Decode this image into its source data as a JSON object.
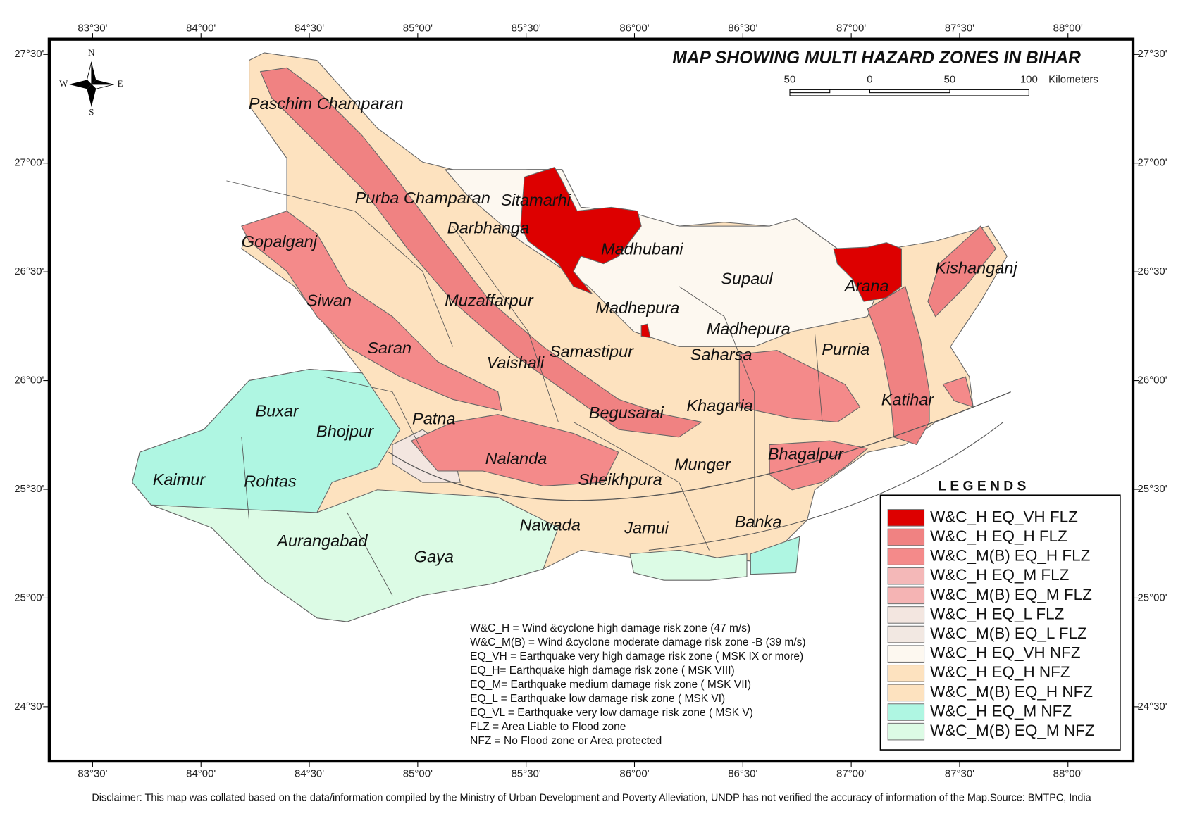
{
  "map": {
    "title": "MAP SHOWING MULTI HAZARD ZONES IN  BIHAR",
    "compass": {
      "n": "N",
      "s": "S",
      "e": "E",
      "w": "W"
    },
    "scale_bar": {
      "labels": [
        "50",
        "0",
        "50",
        "100"
      ],
      "unit": "Kilometers"
    },
    "xlim": [
      83.3,
      88.3
    ],
    "ylim": [
      24.25,
      27.57
    ],
    "xticks": [
      {
        "value": 83.5,
        "label": "83°30'"
      },
      {
        "value": 84,
        "label": "84°00'"
      },
      {
        "value": 84.5,
        "label": "84°30'"
      },
      {
        "value": 85,
        "label": "85°00'"
      },
      {
        "value": 85.5,
        "label": "85°30'"
      },
      {
        "value": 86,
        "label": "86°00'"
      },
      {
        "value": 86.5,
        "label": "86°30'"
      },
      {
        "value": 87,
        "label": "87°00'"
      },
      {
        "value": 87.5,
        "label": "87°30'"
      },
      {
        "value": 88,
        "label": "88°00'"
      }
    ],
    "yticks": [
      {
        "value": 27.5,
        "label": "27°30'"
      },
      {
        "value": 27,
        "label": "27°00'"
      },
      {
        "value": 26.5,
        "label": "26°30'"
      },
      {
        "value": 26,
        "label": "26°00'"
      },
      {
        "value": 25.5,
        "label": "25°30'"
      },
      {
        "value": 25,
        "label": "25°00'"
      },
      {
        "value": 24.5,
        "label": "24°30'"
      }
    ],
    "districts": [
      "Paschim Champaran",
      "Purba Champaran",
      "Sitamarhi",
      "Darbhanga",
      "Gopalganj",
      "Madhubani",
      "Supaul",
      "Arana",
      "Kishanganj",
      "Siwan",
      "Muzaffarpur",
      "Madhepura",
      "Madhepura",
      "Saran",
      "Vaishali",
      "Samastipur",
      "Saharsa",
      "Purnia",
      "Khagaria",
      "Katihar",
      "Begusarai",
      "Buxar",
      "Bhojpur",
      "Patna",
      "Bhagalpur",
      "Kaimur",
      "Rohtas",
      "Nalanda",
      "Sheikhpura",
      "Munger",
      "Nawada",
      "Jamui",
      "Banka",
      "Aurangabad",
      "Gaya"
    ],
    "legend": {
      "title": "L E G E N D S",
      "entries": [
        {
          "name": "W&C_H EQ_VH FLZ",
          "color": "#dd0000"
        },
        {
          "name": "W&C_H EQ_H FLZ",
          "color": "#f08282"
        },
        {
          "name": "W&C_M(B) EQ_H FLZ",
          "color": "#f48a8a"
        },
        {
          "name": "W&C_H EQ_M FLZ",
          "color": "#f4b8b8"
        },
        {
          "name": "W&C_M(B) EQ_M FLZ",
          "color": "#f5b4b4"
        },
        {
          "name": "W&C_H EQ_L FLZ",
          "color": "#f3e6e0"
        },
        {
          "name": "W&C_M(B) EQ_L FLZ",
          "color": "#f2e8e2"
        },
        {
          "name": "W&C_H EQ_VH NFZ",
          "color": "#fdf8f0"
        },
        {
          "name": "W&C_H EQ_H NFZ",
          "color": "#fde2bf"
        },
        {
          "name": "W&C_M(B) EQ_H NFZ",
          "color": "#fde2bf"
        },
        {
          "name": "W&C_H EQ_M NFZ",
          "color": "#aff6e2"
        },
        {
          "name": "W&C_M(B) EQ_M NFZ",
          "color": "#dcfbe5"
        }
      ]
    },
    "notes": [
      "W&C_H = Wind &cyclone high damage risk zone  (47 m/s)",
      "W&C_M(B)   = Wind &cyclone moderate  damage risk zone -B (39 m/s)",
      "EQ_VH = Earthquake  very high damage risk zone ( MSK  IX or more)",
      "EQ_H= Earthquake high damage risk zone ( MSK  VIII)",
      "EQ_M= Earthquake medium damage risk zone ( MSK  VII)",
      "EQ_L = Earthquake  low damage risk zone ( MSK  VI)",
      "EQ_VL = Earthquake  very  low damage risk zone ( MSK  V)",
      "FLZ =  Area Liable to  Flood  zone",
      "NFZ =  No Flood zone or Area protected"
    ],
    "disclaimer": "Disclaimer: This map was collated based on the data/information compiled by the Ministry of Urban Development and Poverty Alleviation, UNDP has not verified the accuracy of information of the Map.Source: BMTPC, India"
  }
}
